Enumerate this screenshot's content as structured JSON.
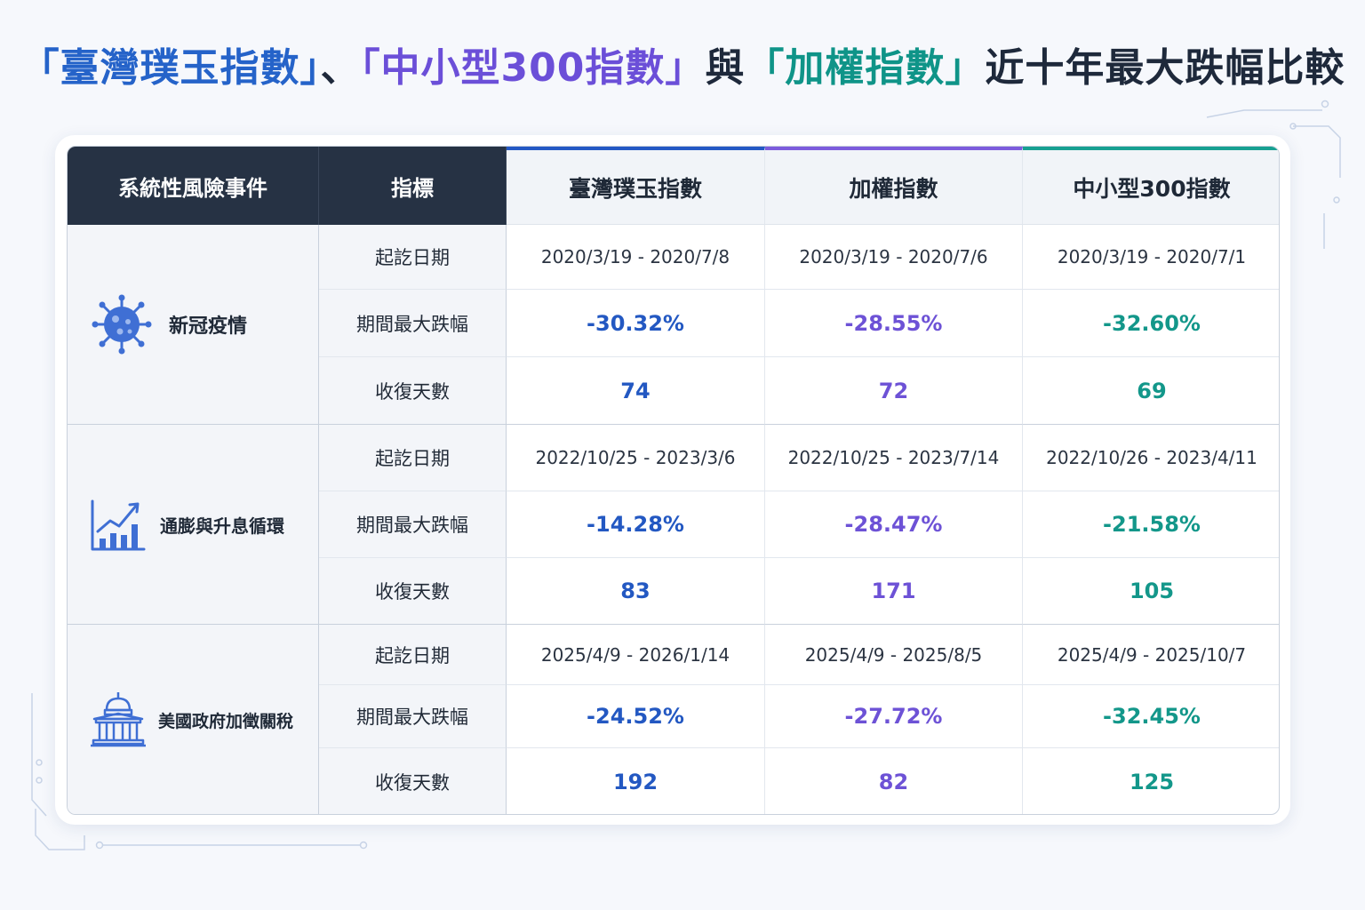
{
  "title": {
    "part1": "「臺灣璞玉指數」",
    "sep1": "、",
    "part2": "「中小型300指數」",
    "sep2": "與",
    "part3": "「加權指數」",
    "part4": "近十年最大跌幅比較"
  },
  "headers": {
    "event": "系統性風險事件",
    "metric": "指標",
    "col1": "臺灣璞玉指數",
    "col2": "加權指數",
    "col3": "中小型300指數"
  },
  "colors": {
    "col1": "#2358c2",
    "col2": "#6d52d6",
    "col3": "#13978a",
    "header_dark": "#263244"
  },
  "events": [
    {
      "name": "新冠疫情",
      "icon": "virus-icon",
      "rows": [
        {
          "metric": "起訖日期",
          "col1": "2020/3/19 - 2020/7/8",
          "col2": "2020/3/19 - 2020/7/6",
          "col3": "2020/3/19 - 2020/7/1"
        },
        {
          "metric": "期間最大跌幅",
          "col1": "-30.32%",
          "col2": "-28.55%",
          "col3": "-32.60%"
        },
        {
          "metric": "收復天數",
          "col1": "74",
          "col2": "72",
          "col3": "69"
        }
      ]
    },
    {
      "name": "通膨與升息循環",
      "icon": "bar-chart-rising-icon",
      "rows": [
        {
          "metric": "起訖日期",
          "col1": "2022/10/25 - 2023/3/6",
          "col2": "2022/10/25 - 2023/7/14",
          "col3": "2022/10/26 - 2023/4/11"
        },
        {
          "metric": "期間最大跌幅",
          "col1": "-14.28%",
          "col2": "-28.47%",
          "col3": "-21.58%"
        },
        {
          "metric": "收復天數",
          "col1": "83",
          "col2": "171",
          "col3": "105"
        }
      ]
    },
    {
      "name": "美國政府加徵關稅",
      "icon": "capitol-building-icon",
      "rows": [
        {
          "metric": "起訖日期",
          "col1": "2025/4/9 - 2026/1/14",
          "col2": "2025/4/9 - 2025/8/5",
          "col3": "2025/4/9 - 2025/10/7"
        },
        {
          "metric": "期間最大跌幅",
          "col1": "-24.52%",
          "col2": "-27.72%",
          "col3": "-32.45%"
        },
        {
          "metric": "收復天數",
          "col1": "192",
          "col2": "82",
          "col3": "125"
        }
      ]
    }
  ]
}
